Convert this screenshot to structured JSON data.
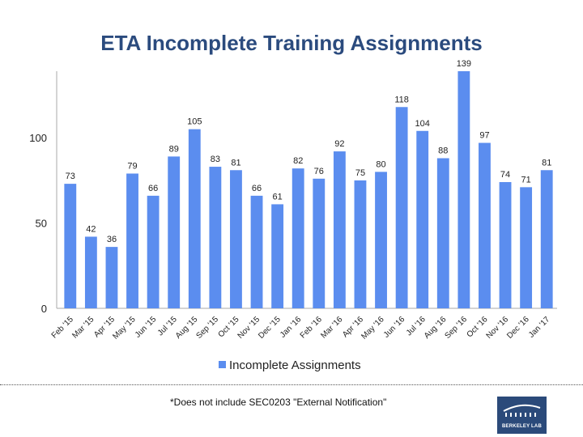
{
  "slide": {
    "title": "ETA Incomplete Training Assignments",
    "footnote": "*Does not include SEC0203 \"External Notification\"",
    "logo_text": "BERKELEY LAB"
  },
  "colors": {
    "title": "#2b4b7e",
    "bar": "#5b8def",
    "logo_bg": "#2b4a7a"
  },
  "chart_data": {
    "type": "bar",
    "categories": [
      "Feb '15",
      "Mar '15",
      "Apr '15",
      "May '15",
      "Jun '15",
      "Jul '15",
      "Aug '15",
      "Sep '15",
      "Oct '15",
      "Nov '15",
      "Dec '15",
      "Jan '16",
      "Feb '16",
      "Mar '16",
      "Apr '16",
      "May '16",
      "Jun '16",
      "Jul '16",
      "Aug '16",
      "Sep '16",
      "Oct '16",
      "Nov '16",
      "Dec '16",
      "Jan '17"
    ],
    "series": [
      {
        "name": "Incomplete Assignments",
        "values": [
          73,
          42,
          36,
          79,
          66,
          89,
          105,
          83,
          81,
          66,
          61,
          82,
          76,
          92,
          75,
          80,
          118,
          104,
          88,
          139,
          97,
          74,
          71,
          81
        ]
      }
    ],
    "yticks": [
      0,
      50,
      100
    ],
    "ylim": [
      0,
      139
    ],
    "legend_position": "bottom",
    "grid": false,
    "data_labels": true
  }
}
